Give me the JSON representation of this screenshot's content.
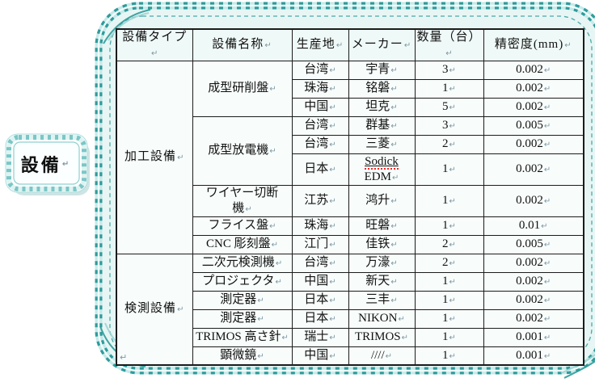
{
  "page": {
    "background": "#ffffff"
  },
  "colors": {
    "frame_teal": "#2f9b9b",
    "frame_light_band": "#c6e9e9",
    "frame_fill": "#e7f6f4",
    "label_band": "#7cc6c6",
    "table_border": "#1b1b1b",
    "cell_background": "#f8fdfc",
    "spellcheck_red": "#ff2222"
  },
  "marks": {
    "return_mark": "↵"
  },
  "frame_label": {
    "text": "設備"
  },
  "table": {
    "headers": [
      "設備タイプ",
      "設備名称",
      "生産地",
      "メーカー",
      "数量（台）",
      "精密度(mm)"
    ],
    "spellcheck_word": "Sodick",
    "groups": [
      {
        "type": "加工設備",
        "items": [
          {
            "name": "成型研削盤",
            "rows": [
              {
                "origin": "台湾",
                "maker": "宇青",
                "qty": "3",
                "precision": "0.002"
              },
              {
                "origin": "珠海",
                "maker": "铭磐",
                "qty": "1",
                "precision": "0.002"
              },
              {
                "origin": "中国",
                "maker": "坦克",
                "qty": "5",
                "precision": "0.002"
              }
            ]
          },
          {
            "name": "成型放電機",
            "rows": [
              {
                "origin": "台湾",
                "maker": "群基",
                "qty": "3",
                "precision": "0.005"
              },
              {
                "origin": "台湾",
                "maker": "三菱",
                "qty": "2",
                "precision": "0.002"
              },
              {
                "origin": "日本",
                "maker": "Sodick\nEDM",
                "qty": "1",
                "precision": "0.002"
              }
            ]
          },
          {
            "name": "ワイヤー切断\n機",
            "rows": [
              {
                "origin": "江苏",
                "maker": "鸿升",
                "qty": "1",
                "precision": "0.002"
              }
            ]
          },
          {
            "name": "フライス盤",
            "rows": [
              {
                "origin": "珠海",
                "maker": "旺磐",
                "qty": "1",
                "precision": "0.01"
              }
            ]
          },
          {
            "name": "CNC 彫刻盤",
            "rows": [
              {
                "origin": "江门",
                "maker": "佳铁",
                "qty": "2",
                "precision": "0.005"
              }
            ]
          }
        ]
      },
      {
        "type": "検測設備",
        "items": [
          {
            "name": "二次元検測機",
            "rows": [
              {
                "origin": "台湾",
                "maker": "万濠",
                "qty": "2",
                "precision": "0.002"
              }
            ]
          },
          {
            "name": "プロジェクタ",
            "rows": [
              {
                "origin": "中国",
                "maker": "新天",
                "qty": "1",
                "precision": "0.002"
              }
            ]
          },
          {
            "name": "測定器",
            "rows": [
              {
                "origin": "日本",
                "maker": "三丰",
                "qty": "1",
                "precision": "0.002"
              }
            ]
          },
          {
            "name": "測定器",
            "rows": [
              {
                "origin": "日本",
                "maker": "NIKON",
                "qty": "1",
                "precision": "0.002"
              }
            ]
          },
          {
            "name": "TRIMOS 高さ針",
            "rows": [
              {
                "origin": "瑞士",
                "maker": "TRIMOS",
                "qty": "1",
                "precision": "0.001"
              }
            ]
          },
          {
            "name": "顕微鏡",
            "rows": [
              {
                "origin": "中国",
                "maker": "////",
                "qty": "1",
                "precision": "0.001"
              }
            ]
          }
        ]
      }
    ]
  }
}
